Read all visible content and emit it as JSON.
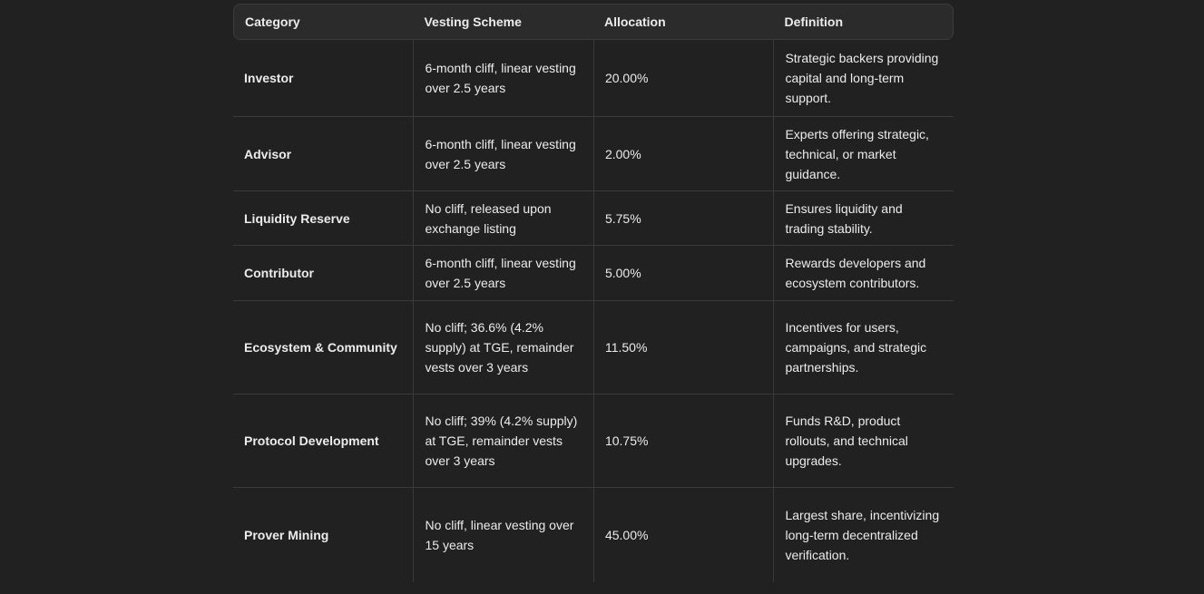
{
  "table": {
    "columns": [
      "Category",
      "Vesting Scheme",
      "Allocation",
      "Definition"
    ],
    "rows": [
      [
        "Investor",
        "6-month cliff, linear vesting over 2.5 years",
        "20.00%",
        "Strategic backers providing capital and long-term support."
      ],
      [
        "Advisor",
        "6-month cliff, linear vesting over 2.5 years",
        "2.00%",
        "Experts offering strategic, technical, or market guidance."
      ],
      [
        "Liquidity Reserve",
        "No cliff, released upon exchange listing",
        "5.75%",
        "Ensures liquidity and trading stability."
      ],
      [
        "Contributor",
        "6-month cliff, linear vesting over 2.5 years",
        "5.00%",
        "Rewards developers and ecosystem contributors."
      ],
      [
        "Ecosystem & Community",
        "No cliff; 36.6% (4.2% supply) at TGE, remainder vests over 3 years",
        "11.50%",
        "Incentives for users, campaigns, and strategic partnerships."
      ],
      [
        "Protocol Development",
        "No cliff; 39% (4.2% supply) at TGE, remainder vests over 3 years",
        "10.75%",
        "Funds R&D, product rollouts, and technical upgrades."
      ],
      [
        "Prover Mining",
        "No cliff, linear vesting over 15 years",
        "45.00%",
        "Largest share, incentivizing long-term decentralized verification."
      ]
    ]
  }
}
